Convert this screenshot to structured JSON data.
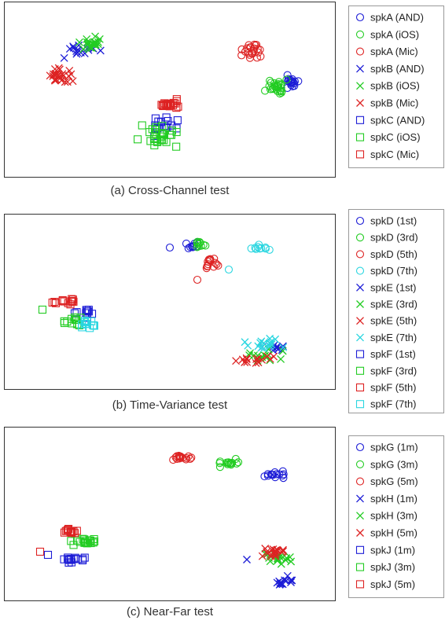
{
  "colors": {
    "blue": "#1c1cd6",
    "green": "#22cc22",
    "red": "#dd2222",
    "cyan": "#2ad6e0"
  },
  "chart_data": [
    {
      "type": "scatter",
      "caption": "(a) Cross-Channel test",
      "axes_visible": false,
      "legend_position": "right",
      "series": [
        {
          "name": "spkA (AND)",
          "marker": "circle",
          "color": "#1c1cd6"
        },
        {
          "name": "spkA (iOS)",
          "marker": "circle",
          "color": "#22cc22"
        },
        {
          "name": "spkA (Mic)",
          "marker": "circle",
          "color": "#dd2222"
        },
        {
          "name": "spkB (AND)",
          "marker": "x",
          "color": "#1c1cd6"
        },
        {
          "name": "spkB (iOS)",
          "marker": "x",
          "color": "#22cc22"
        },
        {
          "name": "spkB (Mic)",
          "marker": "x",
          "color": "#dd2222"
        },
        {
          "name": "spkC (AND)",
          "marker": "square",
          "color": "#1c1cd6"
        },
        {
          "name": "spkC (iOS)",
          "marker": "square",
          "color": "#22cc22"
        },
        {
          "name": "spkC (Mic)",
          "marker": "square",
          "color": "#dd2222"
        }
      ]
    },
    {
      "type": "scatter",
      "caption": "(b) Time-Variance test",
      "axes_visible": false,
      "legend_position": "right",
      "series": [
        {
          "name": "spkD (1st)",
          "marker": "circle",
          "color": "#1c1cd6"
        },
        {
          "name": "spkD (3rd)",
          "marker": "circle",
          "color": "#22cc22"
        },
        {
          "name": "spkD (5th)",
          "marker": "circle",
          "color": "#dd2222"
        },
        {
          "name": "spkD (7th)",
          "marker": "circle",
          "color": "#2ad6e0"
        },
        {
          "name": "spkE (1st)",
          "marker": "x",
          "color": "#1c1cd6"
        },
        {
          "name": "spkE (3rd)",
          "marker": "x",
          "color": "#22cc22"
        },
        {
          "name": "spkE (5th)",
          "marker": "x",
          "color": "#dd2222"
        },
        {
          "name": "spkE (7th)",
          "marker": "x",
          "color": "#2ad6e0"
        },
        {
          "name": "spkF (1st)",
          "marker": "square",
          "color": "#1c1cd6"
        },
        {
          "name": "spkF (3rd)",
          "marker": "square",
          "color": "#22cc22"
        },
        {
          "name": "spkF (5th)",
          "marker": "square",
          "color": "#dd2222"
        },
        {
          "name": "spkF (7th)",
          "marker": "square",
          "color": "#2ad6e0"
        }
      ]
    },
    {
      "type": "scatter",
      "caption": "(c) Near-Far test",
      "axes_visible": false,
      "legend_position": "right",
      "series": [
        {
          "name": "spkG (1m)",
          "marker": "circle",
          "color": "#1c1cd6"
        },
        {
          "name": "spkG (3m)",
          "marker": "circle",
          "color": "#22cc22"
        },
        {
          "name": "spkG (5m)",
          "marker": "circle",
          "color": "#dd2222"
        },
        {
          "name": "spkH (1m)",
          "marker": "x",
          "color": "#1c1cd6"
        },
        {
          "name": "spkH (3m)",
          "marker": "x",
          "color": "#22cc22"
        },
        {
          "name": "spkH (5m)",
          "marker": "x",
          "color": "#dd2222"
        },
        {
          "name": "spkJ (1m)",
          "marker": "square",
          "color": "#1c1cd6"
        },
        {
          "name": "spkJ (3m)",
          "marker": "square",
          "color": "#22cc22"
        },
        {
          "name": "spkJ (5m)",
          "marker": "square",
          "color": "#dd2222"
        }
      ]
    }
  ]
}
